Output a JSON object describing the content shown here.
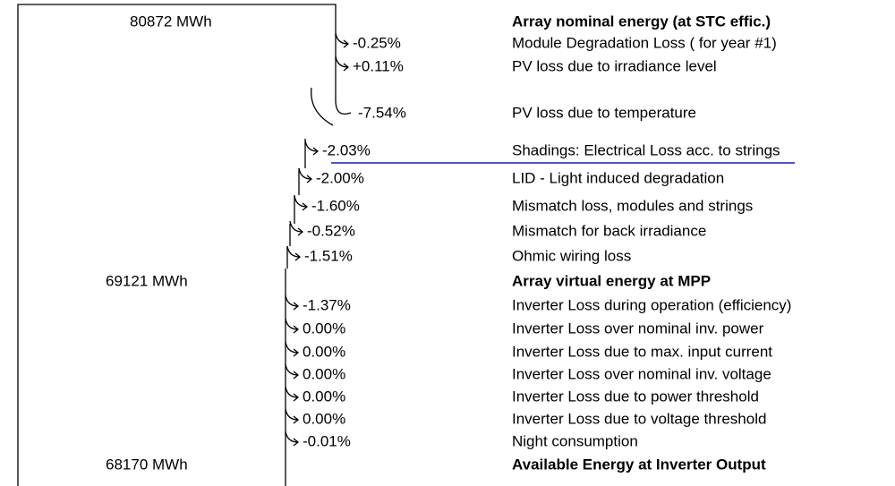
{
  "rows": [
    {
      "energy": "80872 MWh",
      "label": "Array nominal energy (at STC effic.)"
    },
    {
      "change": "-0.25%",
      "label": "Module Degradation Loss ( for year #1)"
    },
    {
      "change": "+0.11%",
      "label": "PV loss due to irradiance level"
    },
    {
      "change": "-7.54%",
      "label": "PV loss due to temperature"
    },
    {
      "change": "-2.03%",
      "label": "Shadings: Electrical Loss acc. to strings"
    },
    {
      "change": "-2.00%",
      "label": "LID - Light induced degradation"
    },
    {
      "change": "-1.60%",
      "label": "Mismatch loss, modules and strings"
    },
    {
      "change": "-0.52%",
      "label": "Mismatch for back irradiance"
    },
    {
      "change": "-1.51%",
      "label": "Ohmic wiring loss"
    },
    {
      "energy": "69121 MWh",
      "label": "Array virtual energy at MPP"
    },
    {
      "change": "-1.37%",
      "label": "Inverter Loss during operation (efficiency)"
    },
    {
      "change": "0.00%",
      "label": "Inverter Loss over nominal inv. power"
    },
    {
      "change": "0.00%",
      "label": "Inverter Loss due to max. input current"
    },
    {
      "change": "0.00%",
      "label": "Inverter Loss over nominal inv. voltage"
    },
    {
      "change": "0.00%",
      "label": "Inverter Loss due to power threshold"
    },
    {
      "change": "0.00%",
      "label": "Inverter Loss due to voltage threshold"
    },
    {
      "change": "-0.01%",
      "label": "Night consumption"
    },
    {
      "energy": "68170 MWh",
      "label": "Available Energy at Inverter Output"
    }
  ]
}
